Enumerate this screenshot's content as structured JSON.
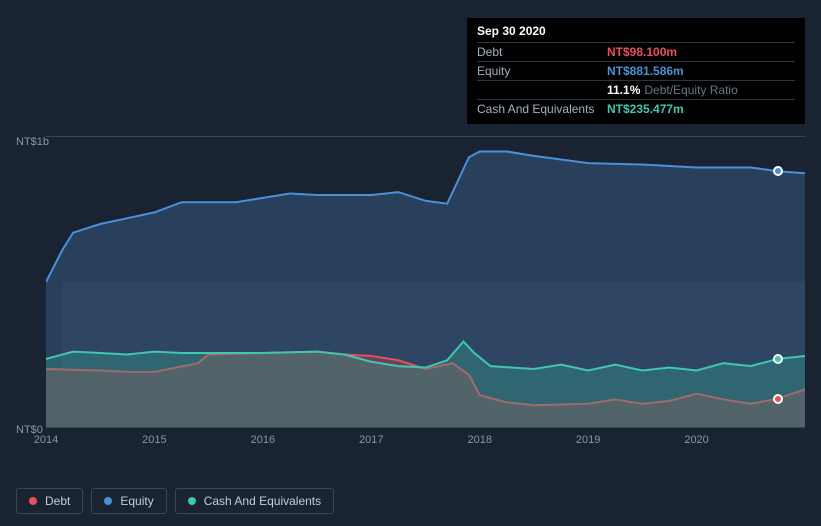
{
  "tooltip": {
    "date": "Sep 30 2020",
    "rows": [
      {
        "label": "Debt",
        "value": "NT$98.100m",
        "color": "#e94f5e"
      },
      {
        "label": "Equity",
        "value": "NT$881.586m",
        "color": "#4a90d9"
      },
      {
        "label": "",
        "value": "11.1%",
        "note": "Debt/Equity Ratio",
        "color": "#ffffff"
      },
      {
        "label": "Cash And Equivalents",
        "value": "NT$235.477m",
        "color": "#3fc7b0"
      }
    ]
  },
  "chart": {
    "background": "#1a2332",
    "plot_bg_top": "rgba(0,0,0,0)",
    "plot_bg_bottom": "rgba(60,72,90,0.35)",
    "y_axis": {
      "ticks": [
        {
          "label": "NT$1b",
          "frac": 0
        },
        {
          "label": "NT$0",
          "frac": 1
        }
      ]
    },
    "x_axis": {
      "start_year": 2014,
      "end_year": 2021,
      "ticks": [
        "2014",
        "2015",
        "2016",
        "2017",
        "2018",
        "2019",
        "2020"
      ]
    },
    "series": [
      {
        "name": "Equity",
        "color": "#4a90d9",
        "fill": "rgba(54,90,130,0.55)",
        "data": [
          [
            2014.0,
            500
          ],
          [
            2014.15,
            610
          ],
          [
            2014.25,
            670
          ],
          [
            2014.5,
            700
          ],
          [
            2014.75,
            720
          ],
          [
            2015.0,
            740
          ],
          [
            2015.25,
            775
          ],
          [
            2015.5,
            775
          ],
          [
            2015.75,
            775
          ],
          [
            2016.0,
            790
          ],
          [
            2016.25,
            805
          ],
          [
            2016.5,
            800
          ],
          [
            2016.75,
            800
          ],
          [
            2017.0,
            800
          ],
          [
            2017.25,
            810
          ],
          [
            2017.5,
            780
          ],
          [
            2017.7,
            770
          ],
          [
            2017.8,
            850
          ],
          [
            2017.9,
            930
          ],
          [
            2018.0,
            950
          ],
          [
            2018.25,
            950
          ],
          [
            2018.5,
            935
          ],
          [
            2019.0,
            910
          ],
          [
            2019.5,
            905
          ],
          [
            2020.0,
            895
          ],
          [
            2020.5,
            895
          ],
          [
            2020.75,
            882
          ],
          [
            2021.0,
            875
          ]
        ]
      },
      {
        "name": "Debt",
        "color": "#e94f5e",
        "fill": "rgba(180,60,75,0.45)",
        "data": [
          [
            2014.0,
            200
          ],
          [
            2014.5,
            195
          ],
          [
            2014.75,
            190
          ],
          [
            2015.0,
            190
          ],
          [
            2015.4,
            220
          ],
          [
            2015.5,
            250
          ],
          [
            2016.0,
            255
          ],
          [
            2016.5,
            260
          ],
          [
            2016.75,
            250
          ],
          [
            2017.0,
            245
          ],
          [
            2017.25,
            230
          ],
          [
            2017.5,
            200
          ],
          [
            2017.75,
            220
          ],
          [
            2017.9,
            180
          ],
          [
            2018.0,
            110
          ],
          [
            2018.25,
            85
          ],
          [
            2018.5,
            75
          ],
          [
            2019.0,
            80
          ],
          [
            2019.25,
            95
          ],
          [
            2019.5,
            80
          ],
          [
            2019.75,
            90
          ],
          [
            2020.0,
            115
          ],
          [
            2020.25,
            95
          ],
          [
            2020.5,
            80
          ],
          [
            2020.75,
            98
          ],
          [
            2021.0,
            130
          ]
        ]
      },
      {
        "name": "Cash And Equivalents",
        "color": "#3fc7b0",
        "fill": "rgba(50,150,135,0.4)",
        "data": [
          [
            2014.0,
            235
          ],
          [
            2014.25,
            260
          ],
          [
            2014.5,
            255
          ],
          [
            2014.75,
            250
          ],
          [
            2015.0,
            260
          ],
          [
            2015.25,
            255
          ],
          [
            2015.5,
            255
          ],
          [
            2016.0,
            255
          ],
          [
            2016.5,
            260
          ],
          [
            2016.75,
            250
          ],
          [
            2017.0,
            225
          ],
          [
            2017.25,
            210
          ],
          [
            2017.5,
            205
          ],
          [
            2017.7,
            230
          ],
          [
            2017.85,
            295
          ],
          [
            2017.95,
            255
          ],
          [
            2018.1,
            210
          ],
          [
            2018.5,
            200
          ],
          [
            2018.75,
            215
          ],
          [
            2019.0,
            195
          ],
          [
            2019.25,
            215
          ],
          [
            2019.5,
            195
          ],
          [
            2019.75,
            205
          ],
          [
            2020.0,
            195
          ],
          [
            2020.25,
            220
          ],
          [
            2020.5,
            210
          ],
          [
            2020.75,
            235
          ],
          [
            2021.0,
            245
          ]
        ]
      }
    ],
    "y_max": 1000,
    "markers_x": 2020.75,
    "marker_colors": {
      "Equity": "#4a90d9",
      "Debt": "#e94f5e",
      "Cash And Equivalents": "#3fc7b0"
    }
  },
  "legend": [
    {
      "label": "Debt",
      "color": "#e94f5e"
    },
    {
      "label": "Equity",
      "color": "#4a90d9"
    },
    {
      "label": "Cash And Equivalents",
      "color": "#3fc7b0"
    }
  ]
}
